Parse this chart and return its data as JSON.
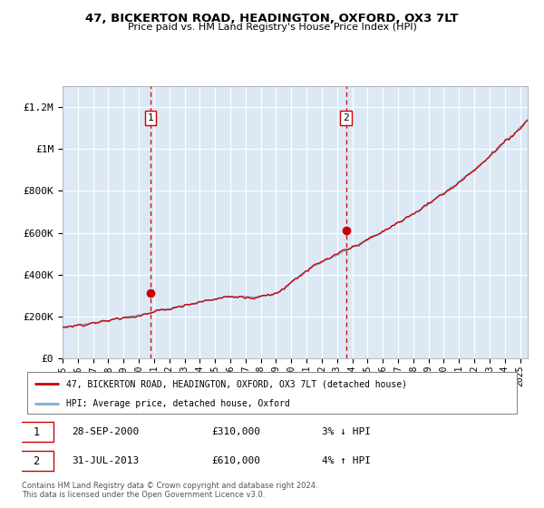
{
  "title1": "47, BICKERTON ROAD, HEADINGTON, OXFORD, OX3 7LT",
  "title2": "Price paid vs. HM Land Registry's House Price Index (HPI)",
  "ylim": [
    0,
    1300000
  ],
  "xlim_start": 1995.0,
  "xlim_end": 2025.5,
  "background_color": "#ffffff",
  "plot_bg_color": "#dce9f5",
  "grid_color": "#ffffff",
  "hpi_color": "#7bafd4",
  "price_color": "#cc0000",
  "transaction1_year": 2000.75,
  "transaction1_price": 310000,
  "transaction2_year": 2013.58,
  "transaction2_price": 610000,
  "annotation1_label": "1",
  "annotation2_label": "2",
  "legend_line1": "47, BICKERTON ROAD, HEADINGTON, OXFORD, OX3 7LT (detached house)",
  "legend_line2": "HPI: Average price, detached house, Oxford",
  "note1_num": "1",
  "note1_date": "28-SEP-2000",
  "note1_price": "£310,000",
  "note1_hpi": "3% ↓ HPI",
  "note2_num": "2",
  "note2_date": "31-JUL-2013",
  "note2_price": "£610,000",
  "note2_hpi": "4% ↑ HPI",
  "footer": "Contains HM Land Registry data © Crown copyright and database right 2024.\nThis data is licensed under the Open Government Licence v3.0.",
  "yticks": [
    0,
    200000,
    400000,
    600000,
    800000,
    1000000,
    1200000
  ],
  "ytick_labels": [
    "£0",
    "£200K",
    "£400K",
    "£600K",
    "£800K",
    "£1M",
    "£1.2M"
  ],
  "xticks": [
    1995,
    1996,
    1997,
    1998,
    1999,
    2000,
    2001,
    2002,
    2003,
    2004,
    2005,
    2006,
    2007,
    2008,
    2009,
    2010,
    2011,
    2012,
    2013,
    2014,
    2015,
    2016,
    2017,
    2018,
    2019,
    2020,
    2021,
    2022,
    2023,
    2024,
    2025
  ]
}
